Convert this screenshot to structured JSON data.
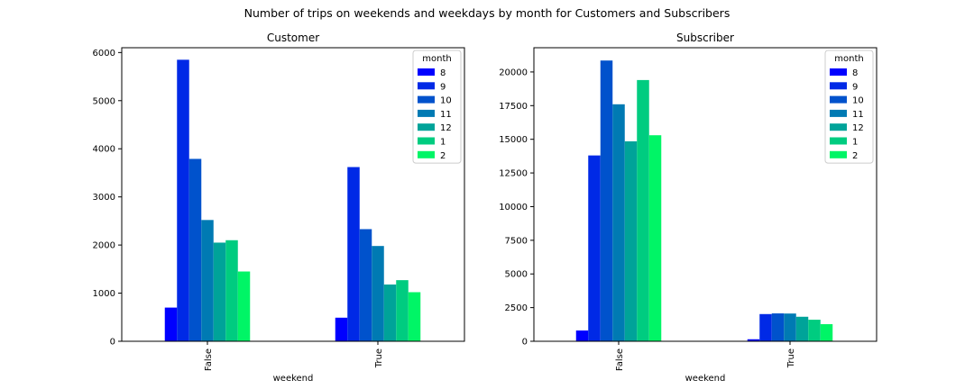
{
  "suptitle": "Number of trips on weekends and weekdays by month for Customers and Subscribers",
  "legend_title": "month",
  "series_colors": [
    "#0000ff",
    "#0029e6",
    "#0052cc",
    "#007ab3",
    "#00a399",
    "#00cc80",
    "#00f566"
  ],
  "chart_data": [
    {
      "type": "bar",
      "title": "Customer",
      "xlabel": "weekend",
      "ylabel": "",
      "categories": [
        "False",
        "True"
      ],
      "ylim": [
        0,
        6100
      ],
      "yticks": [
        0,
        1000,
        2000,
        3000,
        4000,
        5000,
        6000
      ],
      "legend_title": "month",
      "legend_position": "top-right",
      "grid": false,
      "series": [
        {
          "name": "8",
          "values": [
            700,
            490
          ]
        },
        {
          "name": "9",
          "values": [
            5850,
            3620
          ]
        },
        {
          "name": "10",
          "values": [
            3790,
            2330
          ]
        },
        {
          "name": "11",
          "values": [
            2520,
            1980
          ]
        },
        {
          "name": "12",
          "values": [
            2050,
            1180
          ]
        },
        {
          "name": "1",
          "values": [
            2100,
            1270
          ]
        },
        {
          "name": "2",
          "values": [
            1450,
            1020
          ]
        }
      ]
    },
    {
      "type": "bar",
      "title": "Subscriber",
      "xlabel": "weekend",
      "ylabel": "",
      "categories": [
        "False",
        "True"
      ],
      "ylim": [
        0,
        21800
      ],
      "yticks": [
        0,
        2500,
        5000,
        7500,
        10000,
        12500,
        15000,
        17500,
        20000
      ],
      "legend_title": "month",
      "legend_position": "top-right",
      "grid": false,
      "series": [
        {
          "name": "8",
          "values": [
            800,
            150
          ]
        },
        {
          "name": "9",
          "values": [
            13800,
            2020
          ]
        },
        {
          "name": "10",
          "values": [
            20850,
            2070
          ]
        },
        {
          "name": "11",
          "values": [
            17600,
            2060
          ]
        },
        {
          "name": "12",
          "values": [
            14850,
            1820
          ]
        },
        {
          "name": "1",
          "values": [
            19400,
            1600
          ]
        },
        {
          "name": "2",
          "values": [
            15300,
            1270
          ]
        }
      ]
    }
  ]
}
